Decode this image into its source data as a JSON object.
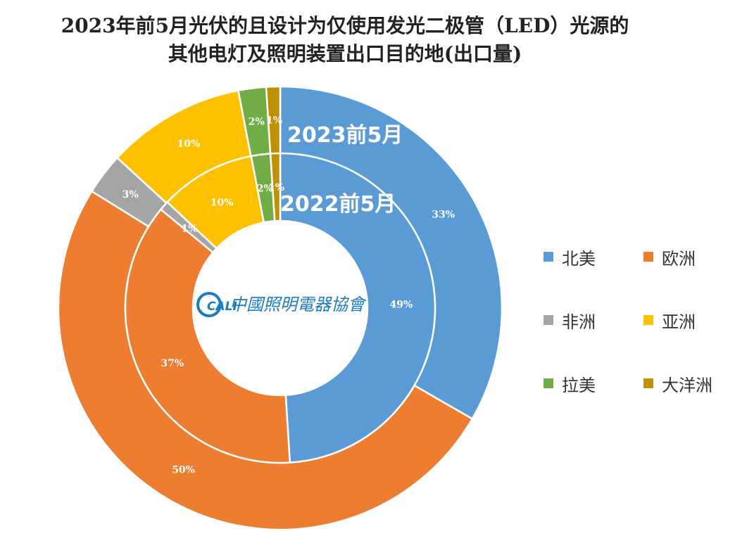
{
  "chart_data": {
    "type": "pie",
    "variant": "double-donut",
    "title_lines": [
      "2023年前5月光伏的且设计为仅使用发光二极管（LED）光源的",
      "其他电灯及照明装置出口目的地(出口量)"
    ],
    "categories": [
      "北美",
      "欧洲",
      "非洲",
      "亚洲",
      "拉美",
      "大洋洲"
    ],
    "colors": [
      "#5b9bd5",
      "#ed7d31",
      "#a5a5a5",
      "#ffc000",
      "#70ad47",
      "#bf9000"
    ],
    "series": [
      {
        "name": "2023前5月",
        "ring": "outer",
        "values": [
          33,
          50,
          3,
          10,
          2,
          1
        ],
        "labels": [
          "33%",
          "50%",
          "3%",
          "10%",
          "2%",
          "1%"
        ]
      },
      {
        "name": "2022前5月",
        "ring": "inner",
        "values": [
          49,
          37,
          1,
          10,
          2,
          1
        ],
        "labels": [
          "49%",
          "37%",
          "1%",
          "10%",
          "2%",
          "1%"
        ]
      }
    ],
    "legend_position": "right"
  },
  "logo": {
    "text": "中國照明電器協會",
    "badge": "CALI"
  }
}
